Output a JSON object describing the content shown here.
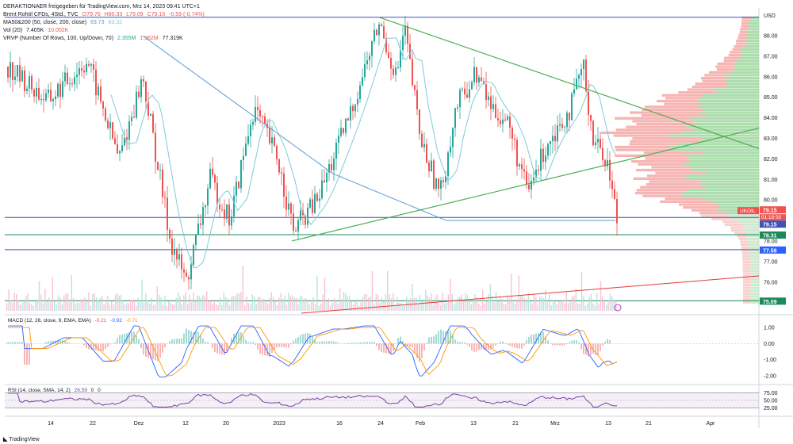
{
  "header": {
    "publisher_line": "DERAKTIONAER freigegeben für TradingView.com, Mrz 14, 2023 09:41 UTC+1",
    "symbol": "Brent Rohöl CFDs, 4Std., TVC",
    "ohlc": [
      "O79.76",
      "H80.33",
      "L79.09",
      "C79.15",
      "-0.59 (-0.74%)"
    ],
    "ma_label": "MA50&200 (50, close, 200, close)",
    "ma_values": [
      "83.73",
      "83.32"
    ],
    "vol_label": "Vol (20)",
    "vol_values": [
      "7.405K",
      "10.002K"
    ],
    "vrvp_label": "VRVP (Number Of Rows, 100, Up/Down, 70)",
    "vrvp_values": [
      "2.355M",
      "1.962M",
      "77.319K"
    ]
  },
  "currency": "USD",
  "price_axis": {
    "ticks": [
      "88.00",
      "87.00",
      "86.00",
      "85.00",
      "84.00",
      "83.00",
      "82.00",
      "81.00",
      "80.00",
      "79.00",
      "78.00",
      "77.00",
      "76.00",
      "75.00"
    ]
  },
  "price_tags": {
    "symbol_tag": "UKOIL",
    "last": "79.15",
    "countdown": "01:18:50",
    "last2": "79.15",
    "support1": "78.31",
    "support2": "77.58",
    "support3": "75.09"
  },
  "macd": {
    "label": "MACD (12, 26, close, 9, EMA, EMA)",
    "values": [
      "-0.21",
      "-0.92",
      "-0.71"
    ],
    "ticks": [
      "1.00",
      "0.00",
      "-1.00",
      "-2.00"
    ]
  },
  "rsi": {
    "label": "RSI (14, close, SMA, 14, 2)",
    "values": [
      "26.59",
      "0",
      "0"
    ],
    "ticks": [
      "75.00",
      "50.00",
      "25.00"
    ]
  },
  "time_axis": [
    "14",
    "22",
    "Dez",
    "12",
    "20",
    "2023",
    "16",
    "24",
    "Feb",
    "13",
    "21",
    "Mrz",
    "13",
    "21",
    "Apr"
  ],
  "footer": "TradingView",
  "colors": {
    "up": "#26a69a",
    "down": "#ef5350",
    "ma50": "#7ecbd9",
    "ma200": "#5b9bd5",
    "triangle": "#4caf50",
    "hline_blue": "#3f51b5",
    "hline_green": "#1b8a5a",
    "trendline_red": "#e53935",
    "rsi_line": "#7b3fa0",
    "macd_line": "#2962ff",
    "signal_line": "#ff9800"
  },
  "chart_data": {
    "type": "line",
    "title": "Brent Rohöl CFDs, 4Std., TVC",
    "ylim": [
      74.6,
      89.2
    ],
    "series": [
      {
        "name": "Brent Rohöl CFDs, 4Std., TVC",
        "x": [
          "14",
          "22",
          "Dez",
          "12",
          "20",
          "2023",
          "16",
          "24",
          "Feb",
          "13",
          "21",
          "Mrz",
          "13"
        ],
        "values": [
          86.5,
          84.0,
          85.5,
          76.0,
          81.5,
          79.0,
          84.5,
          88.5,
          82.5,
          84.5,
          82.0,
          84.5,
          79.15
        ]
      }
    ],
    "horizontal_levels": [
      79.15,
      78.31,
      77.58,
      75.09,
      88.9
    ],
    "last_close": 79.15
  }
}
